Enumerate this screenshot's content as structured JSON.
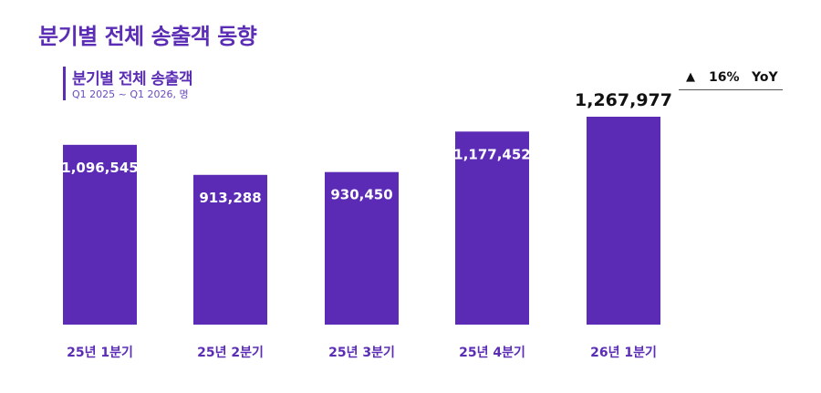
{
  "header": {
    "title": "분기별 전체 송출객 동향"
  },
  "chart_data": {
    "type": "bar",
    "title": "분기별 전체 송출객",
    "subtitle": "Q1 2025 ~ Q1 2026, 명",
    "categories": [
      "25년 1분기",
      "25년 2분기",
      "25년 3분기",
      "25년 4분기",
      "26년 1분기"
    ],
    "values": [
      1096545,
      913288,
      930450,
      1177452,
      1267977
    ],
    "labels": [
      "1,096,545",
      "913,288",
      "930,450",
      "1,177,452",
      "1,267,977"
    ],
    "ylim": [
      0,
      1267977
    ],
    "grid": false,
    "bar_color": "#5b2bb5",
    "highlight_label_color": "#111111"
  },
  "yoy": {
    "arrow_icon": "triangle-up-icon",
    "value": "16%",
    "label": "YoY"
  }
}
